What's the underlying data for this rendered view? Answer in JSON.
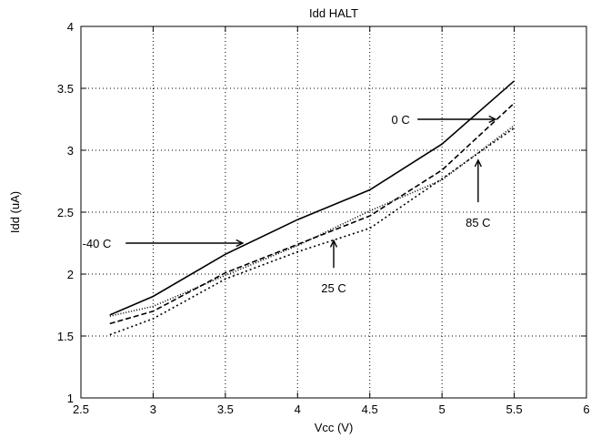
{
  "chart_data": {
    "type": "line",
    "title": "Idd HALT",
    "xlabel": "Vcc (V)",
    "ylabel": "Idd (uA)",
    "xlim": [
      2.5,
      6
    ],
    "ylim": [
      1,
      4
    ],
    "xticks": [
      2.5,
      3,
      3.5,
      4,
      4.5,
      5,
      5.5,
      6
    ],
    "yticks": [
      1,
      1.5,
      2,
      2.5,
      3,
      3.5,
      4
    ],
    "xtick_labels": [
      "2.5",
      "3",
      "3.5",
      "4",
      "4.5",
      "5",
      "5.5",
      "6"
    ],
    "ytick_labels": [
      "1",
      "1.5",
      "2",
      "2.5",
      "3",
      "3.5",
      "4"
    ],
    "grid": true,
    "series": [
      {
        "name": "-40 C",
        "dash": "solid",
        "x": [
          2.7,
          3.0,
          3.5,
          4.0,
          4.5,
          5.0,
          5.5
        ],
        "y": [
          1.67,
          1.82,
          2.16,
          2.44,
          2.68,
          3.05,
          3.56
        ]
      },
      {
        "name": "0 C",
        "dash": "dashed",
        "x": [
          2.7,
          3.0,
          3.5,
          4.0,
          4.5,
          5.0,
          5.5
        ],
        "y": [
          1.6,
          1.7,
          2.01,
          2.24,
          2.47,
          2.84,
          3.38
        ]
      },
      {
        "name": "25 C",
        "dash": "dotted",
        "x": [
          2.7,
          3.0,
          3.5,
          4.0,
          4.5,
          5.0,
          5.5
        ],
        "y": [
          1.51,
          1.64,
          1.96,
          2.18,
          2.37,
          2.77,
          3.18
        ]
      },
      {
        "name": "85 C",
        "dash": "dotted-fine",
        "x": [
          2.7,
          3.0,
          3.5,
          4.0,
          4.5,
          5.0,
          5.5
        ],
        "y": [
          1.66,
          1.74,
          1.99,
          2.23,
          2.51,
          2.76,
          3.2
        ]
      }
    ],
    "annotations": [
      {
        "text": "0 C",
        "text_at": [
          4.65,
          3.25
        ],
        "arrow_from": [
          4.83,
          3.25
        ],
        "arrow_to": [
          5.37,
          3.25
        ],
        "anchor": "start"
      },
      {
        "text": "-40 C",
        "text_at": [
          2.51,
          2.25
        ],
        "arrow_from": [
          2.81,
          2.25
        ],
        "arrow_to": [
          3.62,
          2.25
        ],
        "anchor": "start"
      },
      {
        "text": "25 C",
        "text_at": [
          4.25,
          1.89
        ],
        "arrow_from": [
          4.25,
          2.05
        ],
        "arrow_to": [
          4.25,
          2.27
        ],
        "anchor": "middle"
      },
      {
        "text": "85 C",
        "text_at": [
          5.25,
          2.42
        ],
        "arrow_from": [
          5.25,
          2.58
        ],
        "arrow_to": [
          5.25,
          2.92
        ],
        "anchor": "middle"
      }
    ]
  }
}
